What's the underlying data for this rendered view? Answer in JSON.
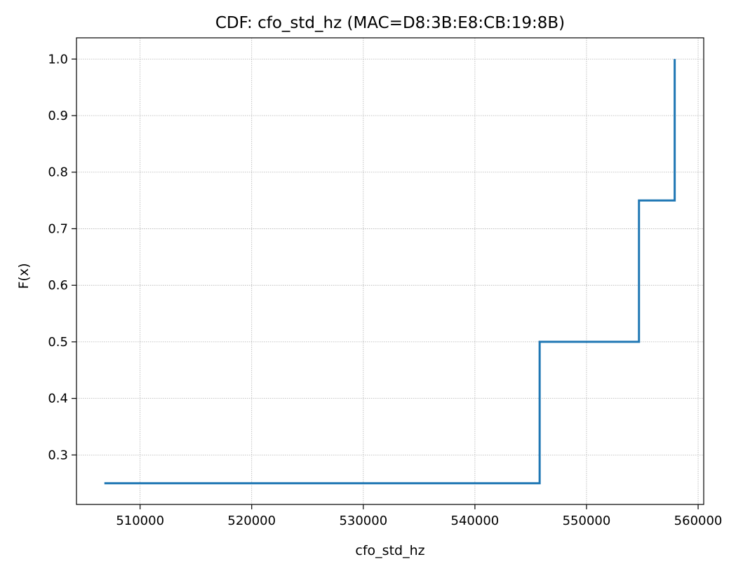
{
  "chart_data": {
    "type": "line",
    "step": "post",
    "title": "CDF: cfo_std_hz (MAC=D8:3B:E8:CB:19:8B)",
    "xlabel": "cfo_std_hz",
    "ylabel": "F(x)",
    "xlim": [
      504300,
      560500
    ],
    "ylim": [
      0.2125,
      1.0375
    ],
    "grid": true,
    "xticks": [
      510000,
      520000,
      530000,
      540000,
      550000,
      560000
    ],
    "xtick_labels": [
      "510000",
      "520000",
      "530000",
      "540000",
      "550000",
      "560000"
    ],
    "yticks": [
      0.3,
      0.4,
      0.5,
      0.6,
      0.7,
      0.8,
      0.9,
      1.0
    ],
    "ytick_labels": [
      "0.3",
      "0.4",
      "0.5",
      "0.6",
      "0.7",
      "0.8",
      "0.9",
      "1.0"
    ],
    "series": [
      {
        "x": [
          506800,
          545800,
          554700,
          557900
        ],
        "y": [
          0.25,
          0.5,
          0.75,
          1.0
        ],
        "color": "#1f77b4"
      }
    ]
  }
}
